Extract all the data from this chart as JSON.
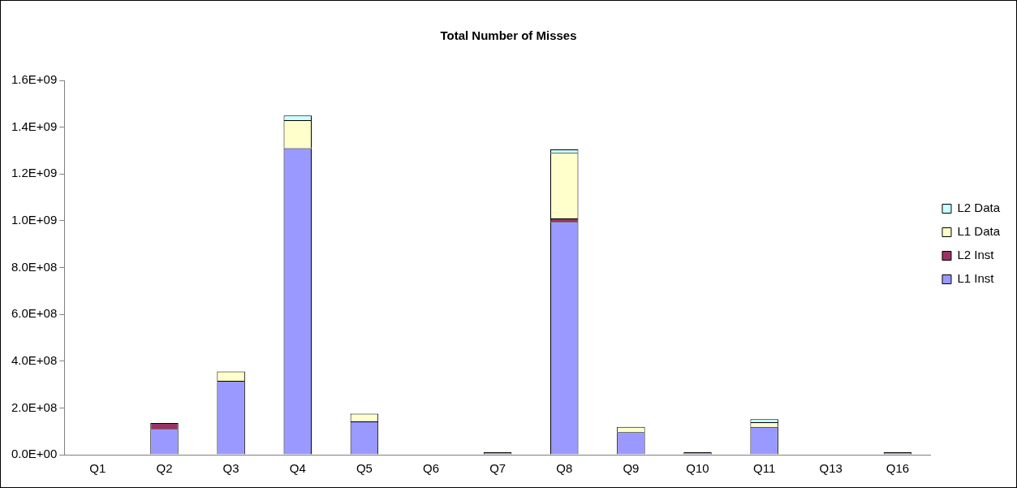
{
  "chart_data": {
    "type": "bar",
    "title": "Total Number of Misses",
    "stacked": true,
    "legend": "right",
    "grid": false,
    "categories": [
      "Q1",
      "Q2",
      "Q3",
      "Q4",
      "Q5",
      "Q6",
      "Q7",
      "Q8",
      "Q9",
      "Q10",
      "Q11",
      "Q13",
      "Q16"
    ],
    "ylim": [
      0,
      1600000000
    ],
    "yticks": [
      {
        "value": 0,
        "label": "0.0E+00"
      },
      {
        "value": 200000000,
        "label": "2.0E+08"
      },
      {
        "value": 400000000,
        "label": "4.0E+08"
      },
      {
        "value": 600000000,
        "label": "6.0E+08"
      },
      {
        "value": 800000000,
        "label": "8.0E+08"
      },
      {
        "value": 1000000000,
        "label": "1.0E+09"
      },
      {
        "value": 1200000000,
        "label": "1.2E+09"
      },
      {
        "value": 1400000000,
        "label": "1.4E+09"
      },
      {
        "value": 1600000000,
        "label": "1.6E+09"
      }
    ],
    "series": [
      {
        "name": "L1 Inst",
        "color": "#9999ff",
        "values": [
          0,
          110000000,
          316000000,
          1310000000,
          142000000,
          0,
          10000000,
          995000000,
          96000000,
          10000000,
          119000000,
          0,
          10000000
        ]
      },
      {
        "name": "L2 Inst",
        "color": "#993366",
        "values": [
          0,
          25000000,
          0,
          0,
          0,
          0,
          0,
          15000000,
          0,
          0,
          0,
          0,
          0
        ]
      },
      {
        "name": "L1 Data",
        "color": "#ffffcc",
        "values": [
          0,
          0,
          40000000,
          120000000,
          33000000,
          0,
          0,
          280000000,
          23000000,
          0,
          20000000,
          0,
          0
        ]
      },
      {
        "name": "L2 Data",
        "color": "#ccffff",
        "values": [
          0,
          0,
          0,
          20000000,
          0,
          0,
          0,
          15000000,
          0,
          0,
          13000000,
          0,
          0
        ]
      }
    ]
  }
}
